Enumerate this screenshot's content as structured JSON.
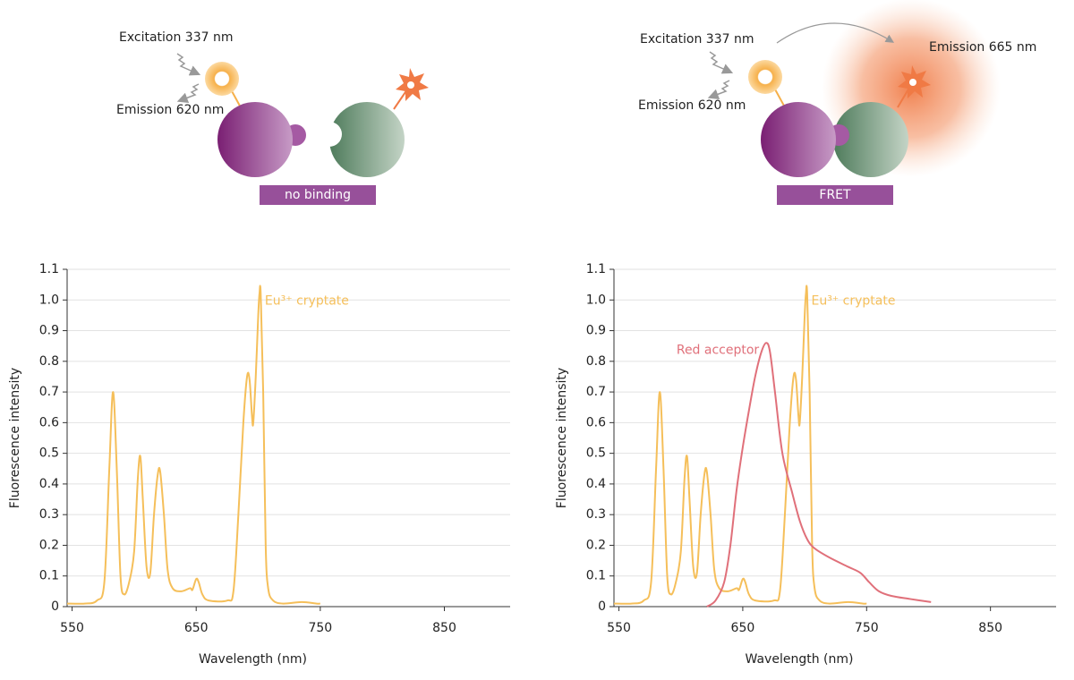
{
  "diagrams": [
    {
      "excitation": "Excitation 337 nm",
      "emission": "Emission 620 nm",
      "state": "no binding"
    },
    {
      "excitation": "Excitation 337 nm",
      "emission": "Emission 620 nm",
      "state": "FRET",
      "acceptor_emission": "Emission 665 nm"
    }
  ],
  "chart_data": [
    {
      "type": "line",
      "xlabel": "Wavelength (nm)",
      "ylabel": "Fluorescence intensity",
      "xlim": [
        546,
        903
      ],
      "xticks": [
        550,
        650,
        750,
        850
      ],
      "ylim": [
        0,
        1.1
      ],
      "yticks": [
        0,
        0.1,
        0.2,
        0.3,
        0.4,
        0.5,
        0.6,
        0.7,
        0.8,
        0.9,
        {
          "value": 1,
          "label": "1.0"
        },
        1.1
      ],
      "grid": true,
      "series": [
        {
          "name": "Eu³⁺ cryptate",
          "color": "#f5bf5a",
          "x": [
            546,
            560,
            570,
            576,
            580,
            583,
            586,
            589,
            592,
            596,
            600,
            603,
            605,
            607,
            610,
            613,
            616,
            619,
            621,
            624,
            627,
            631,
            638,
            645,
            647,
            650,
            652,
            655,
            660,
            675,
            680,
            684,
            688,
            691,
            693,
            695,
            696,
            698,
            700,
            701,
            702,
            704,
            706,
            708,
            712,
            720,
            735,
            747,
            750
          ],
          "values": [
            0.01,
            0.01,
            0.02,
            0.08,
            0.45,
            0.7,
            0.45,
            0.1,
            0.04,
            0.08,
            0.18,
            0.42,
            0.49,
            0.35,
            0.13,
            0.11,
            0.3,
            0.43,
            0.44,
            0.3,
            0.12,
            0.06,
            0.05,
            0.06,
            0.055,
            0.09,
            0.08,
            0.04,
            0.02,
            0.02,
            0.05,
            0.3,
            0.6,
            0.75,
            0.74,
            0.62,
            0.6,
            0.75,
            0.95,
            1.02,
            1.02,
            0.7,
            0.2,
            0.06,
            0.02,
            0.01,
            0.015,
            0.01,
            0.01
          ]
        }
      ]
    },
    {
      "type": "line",
      "xlabel": "Wavelength (nm)",
      "ylabel": "Fluorescence intensity",
      "xlim": [
        546,
        903
      ],
      "xticks": [
        550,
        650,
        750,
        850
      ],
      "ylim": [
        0,
        1.1
      ],
      "yticks": [
        0,
        0.1,
        0.2,
        0.3,
        0.4,
        0.5,
        0.6,
        0.7,
        0.8,
        0.9,
        {
          "value": 1,
          "label": "1.0"
        },
        1.1
      ],
      "grid": true,
      "series": [
        {
          "name": "Eu³⁺ cryptate",
          "color": "#f5bf5a",
          "x": [
            546,
            560,
            570,
            576,
            580,
            583,
            586,
            589,
            592,
            596,
            600,
            603,
            605,
            607,
            610,
            613,
            616,
            619,
            621,
            624,
            627,
            631,
            638,
            645,
            647,
            650,
            652,
            655,
            660,
            675,
            680,
            684,
            688,
            691,
            693,
            695,
            696,
            698,
            700,
            701,
            702,
            704,
            706,
            708,
            712,
            720,
            735,
            747,
            750
          ],
          "values": [
            0.01,
            0.01,
            0.02,
            0.08,
            0.45,
            0.7,
            0.45,
            0.1,
            0.04,
            0.08,
            0.18,
            0.42,
            0.49,
            0.35,
            0.13,
            0.11,
            0.3,
            0.43,
            0.44,
            0.3,
            0.12,
            0.06,
            0.05,
            0.06,
            0.055,
            0.09,
            0.08,
            0.04,
            0.02,
            0.02,
            0.05,
            0.3,
            0.6,
            0.75,
            0.74,
            0.62,
            0.6,
            0.75,
            0.95,
            1.02,
            1.02,
            0.7,
            0.2,
            0.06,
            0.02,
            0.01,
            0.015,
            0.01,
            0.01
          ]
        },
        {
          "name": "Red acceptor",
          "color": "#e0707a",
          "x": [
            621,
            628,
            635,
            640,
            645,
            650,
            655,
            660,
            665,
            669,
            672,
            676,
            682,
            690,
            696,
            702,
            708,
            720,
            735,
            745,
            752,
            760,
            770,
            785,
            802
          ],
          "values": [
            0,
            0.02,
            0.08,
            0.2,
            0.38,
            0.52,
            0.64,
            0.75,
            0.83,
            0.86,
            0.83,
            0.7,
            0.5,
            0.37,
            0.28,
            0.22,
            0.19,
            0.16,
            0.13,
            0.11,
            0.08,
            0.05,
            0.035,
            0.025,
            0.015
          ]
        }
      ]
    }
  ]
}
